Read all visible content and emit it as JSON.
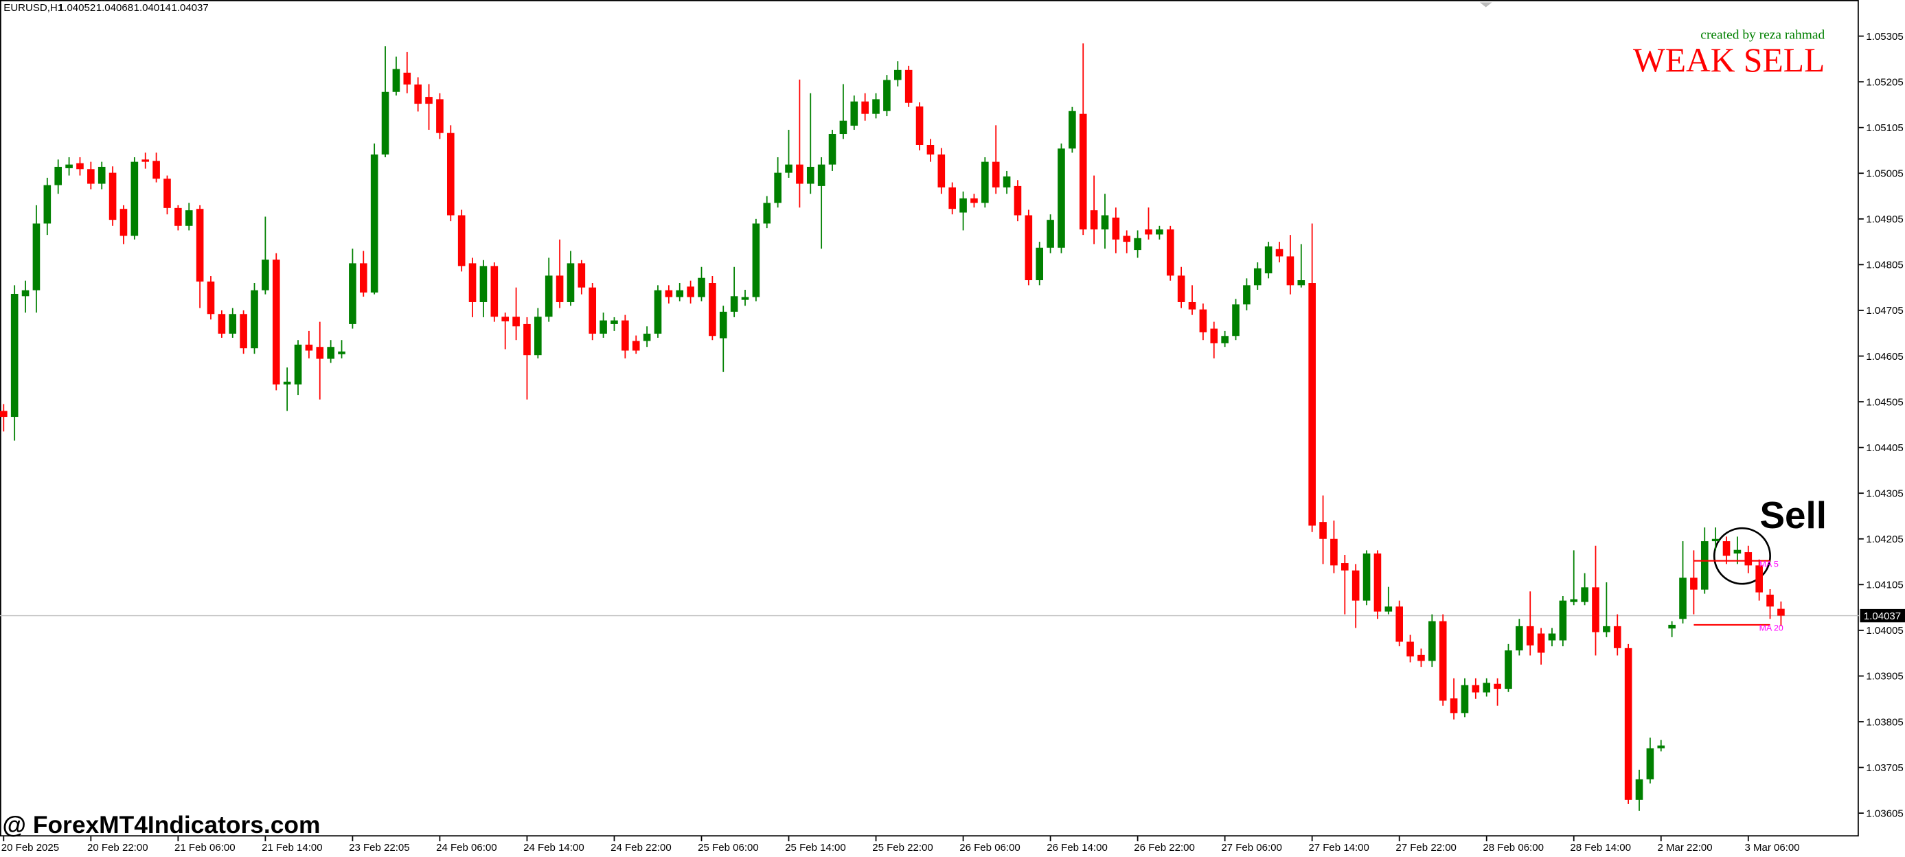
{
  "chart_data": {
    "type": "candlestick",
    "symbol": "EURUSD,H1",
    "colors": {
      "up": "#008000",
      "down": "#ff0000"
    },
    "ohlc": [
      [
        1.04485,
        1.045,
        1.0444,
        1.04472
      ],
      [
        1.04472,
        1.0476,
        1.0442,
        1.04741
      ],
      [
        1.04736,
        1.0477,
        1.047,
        1.04749
      ],
      [
        1.04749,
        1.04935,
        1.047,
        1.04895
      ],
      [
        1.04895,
        1.04995,
        1.0487,
        1.04979
      ],
      [
        1.04979,
        1.05035,
        1.0496,
        1.05019
      ],
      [
        1.05016,
        1.0504,
        1.05,
        1.05024
      ],
      [
        1.05027,
        1.0504,
        1.05,
        1.05014
      ],
      [
        1.05014,
        1.0503,
        1.0497,
        1.04982
      ],
      [
        1.04982,
        1.0503,
        1.0497,
        1.05019
      ],
      [
        1.05006,
        1.0502,
        1.0489,
        1.04903
      ],
      [
        1.04927,
        1.04935,
        1.0485,
        1.04868
      ],
      [
        1.04868,
        1.0504,
        1.0486,
        1.0503
      ],
      [
        1.05035,
        1.0505,
        1.05015,
        1.0503
      ],
      [
        1.05032,
        1.0505,
        1.04985,
        1.04993
      ],
      [
        1.04993,
        1.05,
        1.04915,
        1.04929
      ],
      [
        1.04929,
        1.04935,
        1.0488,
        1.0489
      ],
      [
        1.0489,
        1.0494,
        1.0488,
        1.04924
      ],
      [
        1.04927,
        1.04935,
        1.0471,
        1.04768
      ],
      [
        1.04768,
        1.0478,
        1.04685,
        1.04697
      ],
      [
        1.04697,
        1.04705,
        1.04645,
        1.04654
      ],
      [
        1.04654,
        1.0471,
        1.04645,
        1.04697
      ],
      [
        1.04697,
        1.04705,
        1.0461,
        1.04622
      ],
      [
        1.04622,
        1.04765,
        1.0461,
        1.04749
      ],
      [
        1.04749,
        1.0491,
        1.0474,
        1.04816
      ],
      [
        1.04816,
        1.0483,
        1.0453,
        1.04543
      ],
      [
        1.04543,
        1.0458,
        1.04485,
        1.04549
      ],
      [
        1.04543,
        1.0464,
        1.0452,
        1.0463
      ],
      [
        1.0463,
        1.0466,
        1.046,
        1.04617
      ],
      [
        1.04625,
        1.0468,
        1.0451,
        1.04599
      ],
      [
        1.04599,
        1.0464,
        1.0459,
        1.04625
      ],
      [
        1.04609,
        1.0464,
        1.046,
        1.04615
      ],
      [
        1.04675,
        1.0484,
        1.04665,
        1.04808
      ],
      [
        1.04808,
        1.04835,
        1.04735,
        1.04744
      ],
      [
        1.04744,
        1.0507,
        1.0474,
        1.05046
      ],
      [
        1.05046,
        1.05283,
        1.0504,
        1.05183
      ],
      [
        1.05183,
        1.0526,
        1.05175,
        1.05233
      ],
      [
        1.05225,
        1.0527,
        1.0518,
        1.05199
      ],
      [
        1.05199,
        1.05215,
        1.0514,
        1.05157
      ],
      [
        1.05172,
        1.052,
        1.051,
        1.05157
      ],
      [
        1.05167,
        1.0518,
        1.0508,
        1.05093
      ],
      [
        1.05093,
        1.0511,
        1.049,
        1.04913
      ],
      [
        1.04913,
        1.04925,
        1.0479,
        1.04802
      ],
      [
        1.04808,
        1.0482,
        1.0469,
        1.04723
      ],
      [
        1.04723,
        1.04815,
        1.0469,
        1.04802
      ],
      [
        1.04802,
        1.0481,
        1.0468,
        1.04691
      ],
      [
        1.04691,
        1.047,
        1.0462,
        1.04681
      ],
      [
        1.04691,
        1.04755,
        1.0464,
        1.0467
      ],
      [
        1.04675,
        1.0469,
        1.0451,
        1.04607
      ],
      [
        1.04607,
        1.0471,
        1.046,
        1.04691
      ],
      [
        1.04691,
        1.0482,
        1.0468,
        1.04781
      ],
      [
        1.04781,
        1.0486,
        1.0471,
        1.04723
      ],
      [
        1.04723,
        1.04835,
        1.04715,
        1.04808
      ],
      [
        1.04808,
        1.04815,
        1.0474,
        1.04755
      ],
      [
        1.04755,
        1.04765,
        1.0464,
        1.04654
      ],
      [
        1.04654,
        1.047,
        1.04645,
        1.04683
      ],
      [
        1.04675,
        1.0469,
        1.0466,
        1.04683
      ],
      [
        1.04683,
        1.04695,
        1.046,
        1.04617
      ],
      [
        1.04638,
        1.0465,
        1.0461,
        1.04617
      ],
      [
        1.04638,
        1.0467,
        1.04625,
        1.04654
      ],
      [
        1.04654,
        1.0476,
        1.04645,
        1.04749
      ],
      [
        1.04749,
        1.0476,
        1.0472,
        1.04734
      ],
      [
        1.04734,
        1.04765,
        1.04725,
        1.04749
      ],
      [
        1.04757,
        1.0477,
        1.0472,
        1.04734
      ],
      [
        1.04734,
        1.048,
        1.04725,
        1.04776
      ],
      [
        1.04765,
        1.0478,
        1.0464,
        1.04649
      ],
      [
        1.04644,
        1.04715,
        1.0457,
        1.04702
      ],
      [
        1.04702,
        1.048,
        1.0469,
        1.04736
      ],
      [
        1.04728,
        1.0475,
        1.04715,
        1.04734
      ],
      [
        1.04734,
        1.04905,
        1.04725,
        1.04895
      ],
      [
        1.04895,
        1.04955,
        1.04885,
        1.0494
      ],
      [
        1.0494,
        1.0504,
        1.0493,
        1.05006
      ],
      [
        1.05006,
        1.051,
        1.04995,
        1.05024
      ],
      [
        1.05024,
        1.0521,
        1.0493,
        1.04982
      ],
      [
        1.04982,
        1.0518,
        1.0496,
        1.05019
      ],
      [
        1.04977,
        1.0504,
        1.0484,
        1.05024
      ],
      [
        1.05024,
        1.051,
        1.0501,
        1.05091
      ],
      [
        1.05091,
        1.052,
        1.0508,
        1.0512
      ],
      [
        1.05109,
        1.05175,
        1.051,
        1.05162
      ],
      [
        1.05162,
        1.0518,
        1.0512,
        1.05135
      ],
      [
        1.05135,
        1.0518,
        1.05125,
        1.05167
      ],
      [
        1.05141,
        1.0522,
        1.0513,
        1.05209
      ],
      [
        1.05209,
        1.0525,
        1.05195,
        1.05231
      ],
      [
        1.05231,
        1.0524,
        1.0515,
        1.05159
      ],
      [
        1.05151,
        1.0516,
        1.05055,
        1.05067
      ],
      [
        1.05067,
        1.0508,
        1.0503,
        1.05046
      ],
      [
        1.05046,
        1.0506,
        1.0496,
        1.04974
      ],
      [
        1.04974,
        1.04985,
        1.04915,
        1.04927
      ],
      [
        1.04919,
        1.04965,
        1.0488,
        1.0495
      ],
      [
        1.0495,
        1.0496,
        1.0493,
        1.0494
      ],
      [
        1.0494,
        1.0504,
        1.0493,
        1.0503
      ],
      [
        1.0503,
        1.0511,
        1.0496,
        1.04974
      ],
      [
        1.04974,
        1.0501,
        1.0496,
        1.04998
      ],
      [
        1.04977,
        1.0499,
        1.049,
        1.04913
      ],
      [
        1.04913,
        1.04925,
        1.0476,
        1.04771
      ],
      [
        1.04771,
        1.04855,
        1.0476,
        1.04842
      ],
      [
        1.04842,
        1.04915,
        1.0483,
        1.04903
      ],
      [
        1.04842,
        1.0507,
        1.0483,
        1.05059
      ],
      [
        1.05059,
        1.0515,
        1.0505,
        1.05141
      ],
      [
        1.05135,
        1.05289,
        1.0487,
        1.04882
      ],
      [
        1.04924,
        1.05,
        1.0485,
        1.04882
      ],
      [
        1.04882,
        1.0496,
        1.0484,
        1.04913
      ],
      [
        1.04908,
        1.0493,
        1.0483,
        1.0486
      ],
      [
        1.04868,
        1.0488,
        1.0483,
        1.04855
      ],
      [
        1.04837,
        1.0488,
        1.0482,
        1.04863
      ],
      [
        1.04882,
        1.0493,
        1.0486,
        1.04871
      ],
      [
        1.04871,
        1.0489,
        1.0486,
        1.04882
      ],
      [
        1.04882,
        1.0489,
        1.0477,
        1.04781
      ],
      [
        1.04781,
        1.048,
        1.0471,
        1.04723
      ],
      [
        1.04723,
        1.0476,
        1.04695,
        1.04707
      ],
      [
        1.04707,
        1.0472,
        1.0464,
        1.04657
      ],
      [
        1.04665,
        1.0468,
        1.046,
        1.04633
      ],
      [
        1.04633,
        1.0466,
        1.04625,
        1.04649
      ],
      [
        1.04649,
        1.0473,
        1.0464,
        1.04718
      ],
      [
        1.04718,
        1.04775,
        1.04705,
        1.0476
      ],
      [
        1.0476,
        1.0481,
        1.0475,
        1.04797
      ],
      [
        1.04786,
        1.04855,
        1.04775,
        1.04845
      ],
      [
        1.04839,
        1.04855,
        1.0481,
        1.04823
      ],
      [
        1.04823,
        1.0487,
        1.0474,
        1.0476
      ],
      [
        1.0476,
        1.0485,
        1.04755,
        1.04771
      ],
      [
        1.04765,
        1.04895,
        1.0422,
        1.04234
      ],
      [
        1.04242,
        1.043,
        1.0415,
        1.04205
      ],
      [
        1.04205,
        1.04245,
        1.0413,
        1.04147
      ],
      [
        1.04152,
        1.0417,
        1.0404,
        1.04136
      ],
      [
        1.04136,
        1.0415,
        1.0401,
        1.0407
      ],
      [
        1.0407,
        1.0418,
        1.0406,
        1.04173
      ],
      [
        1.04173,
        1.0418,
        1.0403,
        1.04046
      ],
      [
        1.04046,
        1.041,
        1.0404,
        1.04057
      ],
      [
        1.04057,
        1.0407,
        1.0397,
        1.0398
      ],
      [
        1.0398,
        1.03995,
        1.03935,
        1.03948
      ],
      [
        1.03951,
        1.03965,
        1.03925,
        1.03938
      ],
      [
        1.03938,
        1.0404,
        1.03925,
        1.04025
      ],
      [
        1.04025,
        1.0404,
        1.0384,
        1.03851
      ],
      [
        1.03856,
        1.039,
        1.0381,
        1.03824
      ],
      [
        1.03824,
        1.039,
        1.03815,
        1.03885
      ],
      [
        1.03885,
        1.039,
        1.03855,
        1.03869
      ],
      [
        1.03869,
        1.039,
        1.0386,
        1.0389
      ],
      [
        1.03888,
        1.039,
        1.0384,
        1.03877
      ],
      [
        1.03877,
        1.03975,
        1.0387,
        1.03961
      ],
      [
        1.03961,
        1.0403,
        1.0395,
        1.04014
      ],
      [
        1.04014,
        1.0409,
        1.0395,
        1.03972
      ],
      [
        1.03998,
        1.0401,
        1.0393,
        1.03956
      ],
      [
        1.03983,
        1.0401,
        1.0397,
        1.03998
      ],
      [
        1.03983,
        1.0408,
        1.0397,
        1.0407
      ],
      [
        1.04067,
        1.0418,
        1.0406,
        1.04073
      ],
      [
        1.04067,
        1.0413,
        1.0406,
        1.04099
      ],
      [
        1.04099,
        1.0419,
        1.0395,
        1.04001
      ],
      [
        1.04001,
        1.0411,
        1.0399,
        1.04014
      ],
      [
        1.04014,
        1.0404,
        1.0395,
        1.03966
      ],
      [
        1.03966,
        1.03975,
        1.03625,
        1.03634
      ],
      [
        1.03634,
        1.037,
        1.0361,
        1.03679
      ],
      [
        1.03679,
        1.0377,
        1.0367,
        1.03747
      ],
      [
        1.03747,
        1.03765,
        1.0374,
        1.03753
      ],
      [
        1.04009,
        1.04025,
        1.0399,
        1.04017
      ],
      [
        1.0403,
        1.042,
        1.0402,
        1.0412
      ],
      [
        1.0412,
        1.0418,
        1.0404,
        1.04094
      ],
      [
        1.04094,
        1.0423,
        1.04085,
        1.042
      ],
      [
        1.042,
        1.0423,
        1.0418,
        1.04205
      ],
      [
        1.042,
        1.0421,
        1.0415,
        1.04168
      ],
      [
        1.04173,
        1.0421,
        1.0415,
        1.04181
      ],
      [
        1.04176,
        1.0419,
        1.0413,
        1.04147
      ],
      [
        1.04147,
        1.0416,
        1.0407,
        1.04088
      ],
      [
        1.04083,
        1.04095,
        1.0403,
        1.04057
      ],
      [
        1.04052,
        1.04068,
        1.04014,
        1.04037
      ]
    ],
    "ylim": [
      1.03554,
      1.05384
    ],
    "yticks": [
      1.05305,
      1.05205,
      1.05105,
      1.05005,
      1.04905,
      1.04805,
      1.04705,
      1.04605,
      1.04505,
      1.04405,
      1.04305,
      1.04205,
      1.04105,
      1.04005,
      1.03905,
      1.03805,
      1.03705,
      1.03605
    ],
    "xticks": [
      {
        "value": 0,
        "label": "20 Feb 2025"
      },
      {
        "value": 8,
        "label": "20 Feb 22:00"
      },
      {
        "value": 16,
        "label": "21 Feb 06:00"
      },
      {
        "value": 24,
        "label": "21 Feb 14:00"
      },
      {
        "value": 32,
        "label": "23 Feb 22:05"
      },
      {
        "value": 40,
        "label": "24 Feb 06:00"
      },
      {
        "value": 48,
        "label": "24 Feb 14:00"
      },
      {
        "value": 56,
        "label": "24 Feb 22:00"
      },
      {
        "value": 64,
        "label": "25 Feb 06:00"
      },
      {
        "value": 72,
        "label": "25 Feb 14:00"
      },
      {
        "value": 80,
        "label": "25 Feb 22:00"
      },
      {
        "value": 88,
        "label": "26 Feb 06:00"
      },
      {
        "value": 96,
        "label": "26 Feb 14:00"
      },
      {
        "value": 104,
        "label": "26 Feb 22:00"
      },
      {
        "value": 112,
        "label": "27 Feb 06:00"
      },
      {
        "value": 120,
        "label": "27 Feb 14:00"
      },
      {
        "value": 128,
        "label": "27 Feb 22:00"
      },
      {
        "value": 136,
        "label": "28 Feb 06:00"
      },
      {
        "value": 144,
        "label": "28 Feb 14:00"
      },
      {
        "value": 152,
        "label": "2 Mar 22:00"
      },
      {
        "value": 160,
        "label": "3 Mar 06:00"
      }
    ],
    "ma_lines": [
      {
        "name": "MA 5",
        "value": 1.04157,
        "color": "#ff0000",
        "label_color": "#ff00ff"
      },
      {
        "name": "MA 20",
        "value": 1.04017,
        "color": "#ff0000",
        "label_color": "#ff00ff"
      }
    ],
    "credit": "created by reza rahmad",
    "signal": "WEAK SELL",
    "annotation": "Sell",
    "watermark": "@ ForexMT4Indicators.com"
  }
}
